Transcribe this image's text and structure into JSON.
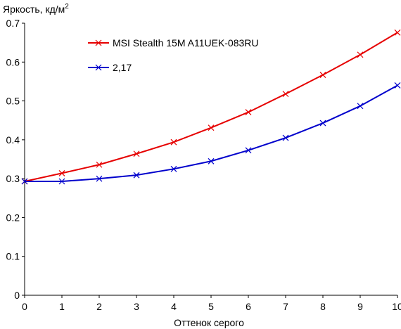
{
  "chart_data": {
    "type": "line",
    "ylabel": "Яркость, кд/м",
    "ylabel_superscript": "2",
    "xlabel": "Оттенок серого",
    "x": [
      0,
      1,
      2,
      3,
      4,
      5,
      6,
      7,
      8,
      9,
      10
    ],
    "xlim": [
      0,
      10
    ],
    "ylim": [
      0,
      0.7
    ],
    "x_ticks": [
      "0",
      "1",
      "2",
      "3",
      "4",
      "5",
      "6",
      "7",
      "8",
      "9",
      "10"
    ],
    "y_ticks": [
      "0",
      "0.1",
      "0.2",
      "0.3",
      "0.4",
      "0.5",
      "0.6",
      "0.7"
    ],
    "grid": false,
    "legend_position": "top-left",
    "series": [
      {
        "name": "MSI Stealth 15M A11UEK-083RU",
        "color": "#e60000",
        "marker": "x",
        "values": [
          0.293,
          0.314,
          0.336,
          0.364,
          0.394,
          0.431,
          0.471,
          0.518,
          0.567,
          0.619,
          0.676
        ]
      },
      {
        "name": "2,17",
        "color": "#0000cc",
        "marker": "x",
        "values": [
          0.293,
          0.293,
          0.3,
          0.309,
          0.325,
          0.345,
          0.373,
          0.405,
          0.443,
          0.487,
          0.54
        ]
      }
    ]
  }
}
